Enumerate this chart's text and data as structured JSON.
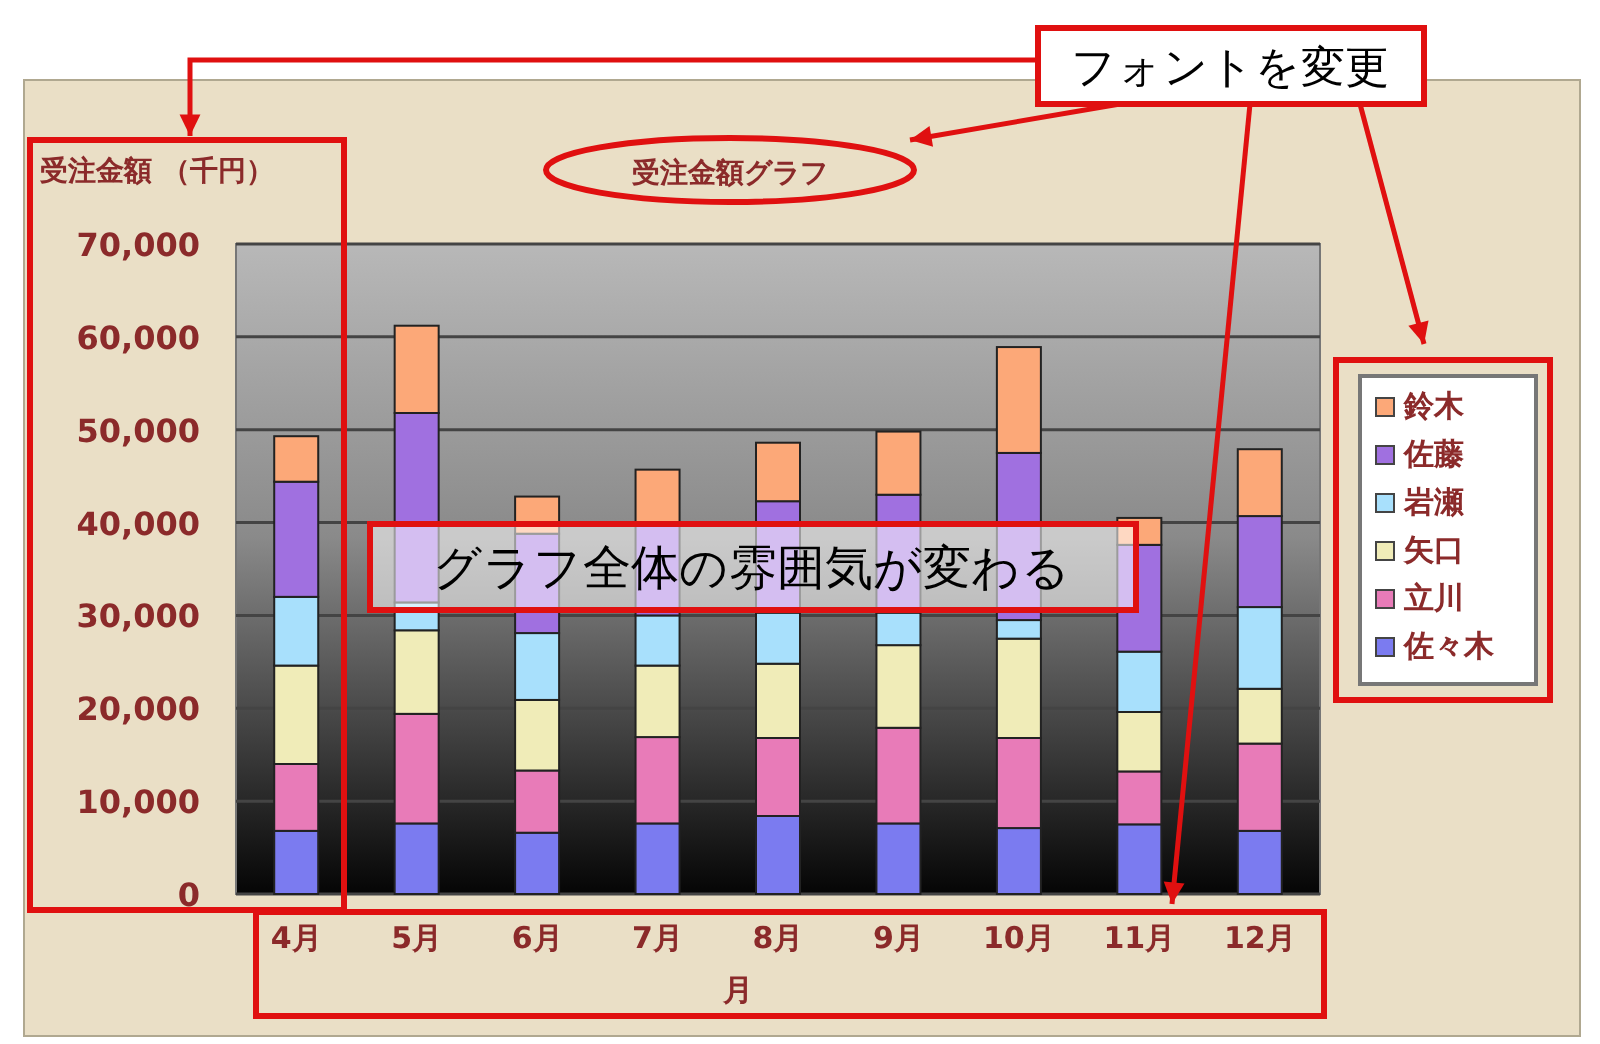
{
  "chart_data": {
    "type": "bar",
    "stacked": true,
    "title": "受注金額グラフ",
    "ylabel": "受注金額 （千円）",
    "xlabel": "月",
    "categories": [
      "4月",
      "5月",
      "6月",
      "7月",
      "8月",
      "9月",
      "10月",
      "11月",
      "12月"
    ],
    "series": [
      {
        "name": "佐々木",
        "color": "#7b7bf0",
        "values": [
          6800,
          7600,
          6600,
          7600,
          8400,
          7600,
          7100,
          7500,
          6800
        ]
      },
      {
        "name": "立川",
        "color": "#e87bb8",
        "values": [
          7200,
          11800,
          6700,
          9300,
          8400,
          10300,
          9700,
          5700,
          9400
        ]
      },
      {
        "name": "矢口",
        "color": "#f0ecb8",
        "values": [
          10600,
          9000,
          7600,
          7700,
          8000,
          8900,
          10700,
          6400,
          5900
        ]
      },
      {
        "name": "岩瀬",
        "color": "#a8e0fc",
        "values": [
          7400,
          3000,
          7200,
          5400,
          5500,
          3500,
          2000,
          6500,
          8800
        ]
      },
      {
        "name": "佐藤",
        "color": "#a070e0",
        "values": [
          12400,
          20400,
          10700,
          10000,
          12000,
          12700,
          18000,
          11500,
          9800
        ]
      },
      {
        "name": "鈴木",
        "color": "#fca878",
        "values": [
          4900,
          9400,
          4000,
          5700,
          6300,
          6800,
          11400,
          2900,
          7200
        ]
      }
    ],
    "ylim": [
      0,
      70000
    ],
    "yticks": [
      {
        "value": 0,
        "label": "0"
      },
      {
        "value": 10000,
        "label": "10,000"
      },
      {
        "value": 20000,
        "label": "20,000"
      },
      {
        "value": 30000,
        "label": "30,000"
      },
      {
        "value": 40000,
        "label": "40,000"
      },
      {
        "value": 50000,
        "label": "50,000"
      },
      {
        "value": 60000,
        "label": "60,000"
      },
      {
        "value": 70000,
        "label": "70,000"
      }
    ],
    "grid": "y",
    "legend": "right",
    "annotations": [
      "フォントを変更",
      "グラフ全体の雰囲気が変わる"
    ]
  }
}
